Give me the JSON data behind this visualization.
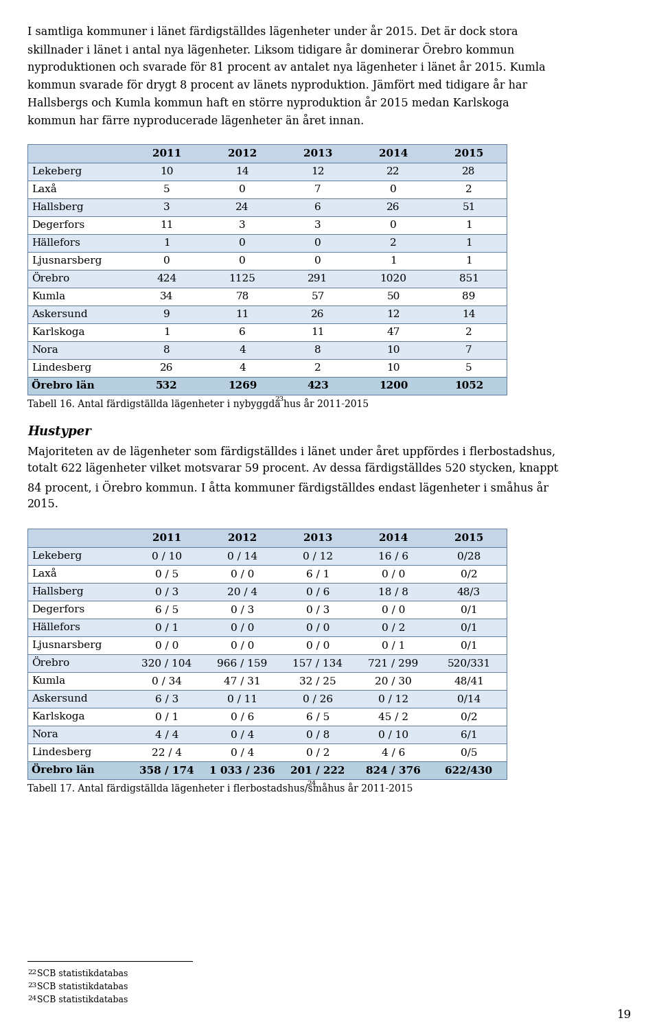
{
  "intro_lines": [
    "I samtliga kommuner i länet färdigställdes lägenheter under år 2015. Det är dock stora",
    "skillnader i länet i antal nya lägenheter. Liksom tidigare år dominerar Örebro kommun",
    "nyproduktionen och svarade för 81 procent av antalet nya lägenheter i länet år 2015. Kumla",
    "kommun svarade för drygt 8 procent av länets nyproduktion. Jämfört med tidigare år har",
    "Hallsbergs och Kumla kommun haft en större nyproduktion år 2015 medan Karlskoga",
    "kommun har färre nyproducerade lägenheter än året innan."
  ],
  "table1_caption": "Tabell 16. Antal färdigställda lägenheter i nybyggda hus år 2011-2015",
  "table1_caption_superscript": "23",
  "table1_headers": [
    "",
    "2011",
    "2012",
    "2013",
    "2014",
    "2015"
  ],
  "table1_rows": [
    [
      "Lekeberg",
      "10",
      "14",
      "12",
      "22",
      "28"
    ],
    [
      "Laxå",
      "5",
      "0",
      "7",
      "0",
      "2"
    ],
    [
      "Hallsberg",
      "3",
      "24",
      "6",
      "26",
      "51"
    ],
    [
      "Degerfors",
      "11",
      "3",
      "3",
      "0",
      "1"
    ],
    [
      "Hällefors",
      "1",
      "0",
      "0",
      "2",
      "1"
    ],
    [
      "Ljusnarsberg",
      "0",
      "0",
      "0",
      "1",
      "1"
    ],
    [
      "Örebro",
      "424",
      "1125",
      "291",
      "1020",
      "851"
    ],
    [
      "Kumla",
      "34",
      "78",
      "57",
      "50",
      "89"
    ],
    [
      "Askersund",
      "9",
      "11",
      "26",
      "12",
      "14"
    ],
    [
      "Karlskoga",
      "1",
      "6",
      "11",
      "47",
      "2"
    ],
    [
      "Nora",
      "8",
      "4",
      "8",
      "10",
      "7"
    ],
    [
      "Lindesberg",
      "26",
      "4",
      "2",
      "10",
      "5"
    ],
    [
      "Örebro län",
      "532",
      "1269",
      "423",
      "1200",
      "1052"
    ]
  ],
  "section_title": "Hustyper",
  "section_lines": [
    "Majoriteten av de lägenheter som färdigställdes i länet under året uppfördes i flerbostadshus,",
    "totalt 622 lägenheter vilket motsvarar 59 procent. Av dessa färdigställdes 520 stycken, knappt",
    "84 procent, i Örebro kommun. I åtta kommuner färdigställdes endast lägenheter i småhus år",
    "2015."
  ],
  "table2_caption": "Tabell 17. Antal färdigställda lägenheter i flerbostadshus/småhus år 2011-2015",
  "table2_caption_superscript": "24",
  "table2_headers": [
    "",
    "2011",
    "2012",
    "2013",
    "2014",
    "2015"
  ],
  "table2_rows": [
    [
      "Lekeberg",
      "0 / 10",
      "0 / 14",
      "0 / 12",
      "16 / 6",
      "0/28"
    ],
    [
      "Laxå",
      "0 / 5",
      "0 / 0",
      "6 / 1",
      "0 / 0",
      "0/2"
    ],
    [
      "Hallsberg",
      "0 / 3",
      "20 / 4",
      "0 / 6",
      "18 / 8",
      "48/3"
    ],
    [
      "Degerfors",
      "6 / 5",
      "0 / 3",
      "0 / 3",
      "0 / 0",
      "0/1"
    ],
    [
      "Hällefors",
      "0 / 1",
      "0 / 0",
      "0 / 0",
      "0 / 2",
      "0/1"
    ],
    [
      "Ljusnarsberg",
      "0 / 0",
      "0 / 0",
      "0 / 0",
      "0 / 1",
      "0/1"
    ],
    [
      "Örebro",
      "320 / 104",
      "966 / 159",
      "157 / 134",
      "721 / 299",
      "520/331"
    ],
    [
      "Kumla",
      "0 / 34",
      "47 / 31",
      "32 / 25",
      "20 / 30",
      "48/41"
    ],
    [
      "Askersund",
      "6 / 3",
      "0 / 11",
      "0 / 26",
      "0 / 12",
      "0/14"
    ],
    [
      "Karlskoga",
      "0 / 1",
      "0 / 6",
      "6 / 5",
      "45 / 2",
      "0/2"
    ],
    [
      "Nora",
      "4 / 4",
      "0 / 4",
      "0 / 8",
      "0 / 10",
      "6/1"
    ],
    [
      "Lindesberg",
      "22 / 4",
      "0 / 4",
      "0 / 2",
      "4 / 6",
      "0/5"
    ],
    [
      "Örebro län",
      "358 / 174",
      "1 033 / 236",
      "201 / 222",
      "824 / 376",
      "622/430"
    ]
  ],
  "footnotes": [
    [
      "22",
      "SCB statistikdatabas"
    ],
    [
      "23",
      "SCB statistikdatabas"
    ],
    [
      "24",
      "SCB statistikdatabas"
    ]
  ],
  "page_number": "19",
  "header_bg": "#c5d5e8",
  "row_bg_even": "#dde8f4",
  "row_bg_odd": "#ffffff",
  "last_row_bg": "#b8cfe0",
  "border_color": "#5a7a9a",
  "text_font": "DejaVu Serif",
  "body_fontsize": 11.5,
  "table_fontsize": 11,
  "caption_fontsize": 10,
  "footnote_fontsize": 9
}
